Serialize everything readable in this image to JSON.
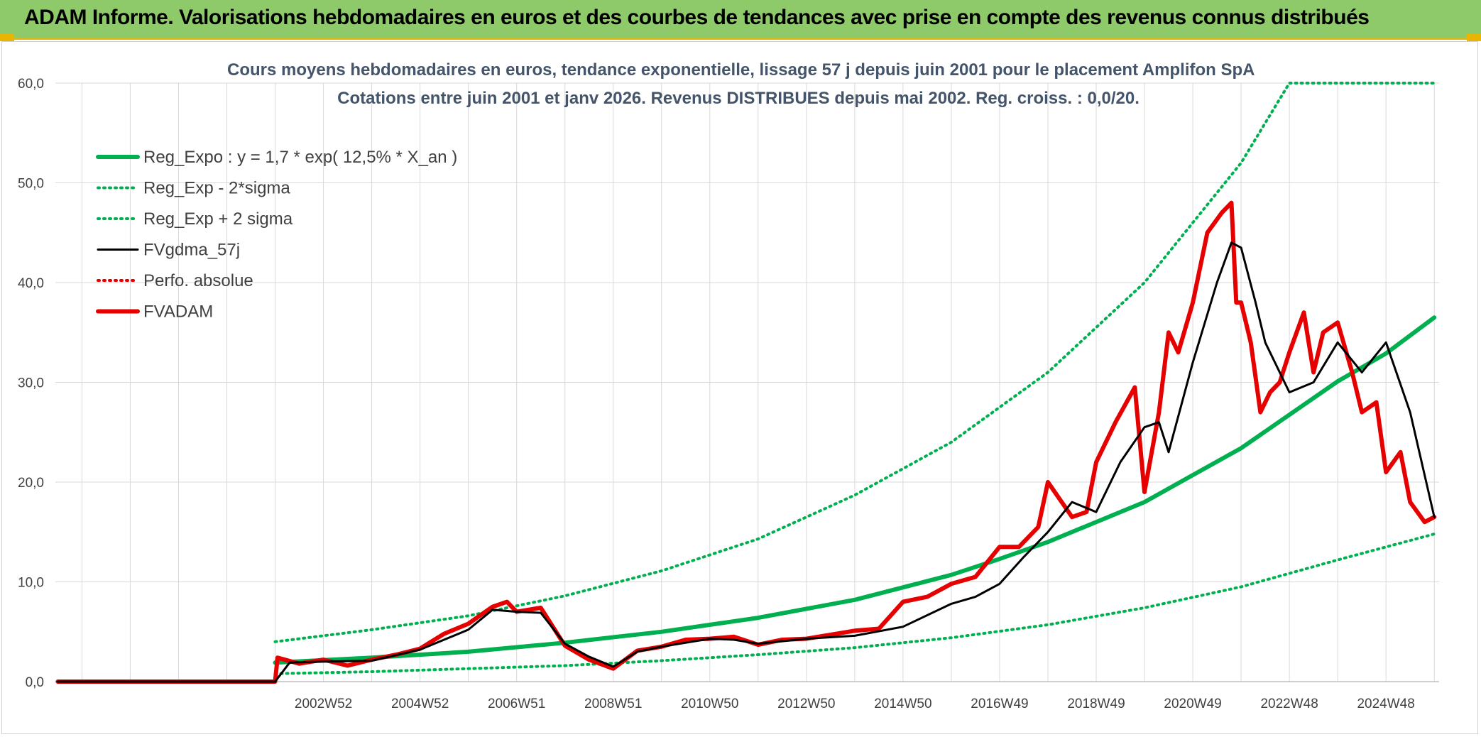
{
  "banner": {
    "title": "ADAM Informe. Valorisations hebdomadaires en euros et des courbes de tendances avec prise en compte des revenus connus distribués"
  },
  "colors": {
    "banner_bg": "#8fca6a",
    "banner_border": "#e9b500",
    "green": "#00b050",
    "red": "#e60000",
    "black": "#000000",
    "grid": "#d9d9d9",
    "title_text": "#44546a"
  },
  "chart_data": {
    "type": "line",
    "title": "Cours moyens hebdomadaires en euros, tendance exponentielle, lissage 57 j depuis juin 2001 pour le placement Amplifon SpA",
    "subtitle": "Cotations entre juin 2001 et janv 2026. Revenus DISTRIBUES depuis mai 2002. Reg. croiss. : 0,0/20.",
    "xlabel": "",
    "ylabel": "",
    "x_range": [
      1997.45,
      2026.1
    ],
    "ylim": [
      0,
      60
    ],
    "y_ticks": [
      "0,0",
      "10,0",
      "20,0",
      "30,0",
      "40,0",
      "50,0",
      "60,0"
    ],
    "x_ticks": [
      {
        "label": "2002W52",
        "x": 2003.0
      },
      {
        "label": "2004W52",
        "x": 2005.0
      },
      {
        "label": "2006W51",
        "x": 2007.0
      },
      {
        "label": "2008W51",
        "x": 2009.0
      },
      {
        "label": "2010W50",
        "x": 2011.0
      },
      {
        "label": "2012W50",
        "x": 2013.0
      },
      {
        "label": "2014W50",
        "x": 2015.0
      },
      {
        "label": "2016W49",
        "x": 2017.0
      },
      {
        "label": "2018W49",
        "x": 2019.0
      },
      {
        "label": "2020W49",
        "x": 2021.0
      },
      {
        "label": "2022W48",
        "x": 2023.0
      },
      {
        "label": "2024W48",
        "x": 2025.0
      }
    ],
    "grid": true,
    "legend_position": "top-left",
    "series": [
      {
        "name": "Reg_Expo : y = 1,7 * exp( 12,5% *  X_an )",
        "style": "solid-thick",
        "color": "#00b050",
        "x": [
          2002.0,
          2004.0,
          2006.0,
          2008.0,
          2010.0,
          2012.0,
          2014.0,
          2016.0,
          2017.0,
          2018.0,
          2020.0,
          2022.0,
          2024.0,
          2025.0,
          2026.0
        ],
        "y": [
          1.9,
          2.4,
          3.0,
          3.9,
          5.0,
          6.4,
          8.2,
          10.7,
          12.3,
          14.0,
          18.0,
          23.4,
          30.1,
          32.9,
          36.5
        ]
      },
      {
        "name": "Reg_Exp - 2*sigma",
        "style": "dotted",
        "color": "#00b050",
        "x": [
          2002.0,
          2004.0,
          2006.0,
          2008.0,
          2010.0,
          2012.0,
          2014.0,
          2016.0,
          2018.0,
          2020.0,
          2022.0,
          2024.0,
          2026.0
        ],
        "y": [
          0.8,
          1.0,
          1.3,
          1.6,
          2.1,
          2.7,
          3.4,
          4.4,
          5.7,
          7.4,
          9.5,
          12.2,
          14.8
        ]
      },
      {
        "name": "Reg_Exp + 2 sigma",
        "style": "dotted",
        "color": "#00b050",
        "x": [
          2002.0,
          2004.0,
          2006.0,
          2008.0,
          2010.0,
          2012.0,
          2014.0,
          2016.0,
          2018.0,
          2020.0,
          2022.0,
          2023.0,
          2024.0,
          2026.0
        ],
        "y": [
          4.0,
          5.2,
          6.6,
          8.6,
          11.1,
          14.3,
          18.7,
          24.0,
          31.0,
          40.0,
          52.0,
          60.0,
          60.0,
          60.0
        ]
      },
      {
        "name": "FVgdma_57j",
        "style": "solid",
        "color": "#000000",
        "x": [
          1997.5,
          2002.0,
          2002.3,
          2003.0,
          2004.0,
          2005.0,
          2006.0,
          2006.5,
          2007.0,
          2007.5,
          2008.0,
          2008.5,
          2009.0,
          2009.5,
          2010.0,
          2011.0,
          2011.5,
          2012.0,
          2013.0,
          2014.0,
          2015.0,
          2016.0,
          2016.5,
          2017.0,
          2017.5,
          2018.0,
          2018.5,
          2019.0,
          2019.5,
          2020.0,
          2020.3,
          2020.5,
          2021.0,
          2021.5,
          2021.8,
          2022.0,
          2022.3,
          2022.5,
          2023.0,
          2023.5,
          2024.0,
          2024.5,
          2025.0,
          2025.5,
          2026.0
        ],
        "y": [
          0.0,
          0.0,
          1.9,
          2.0,
          2.1,
          3.2,
          5.2,
          7.2,
          7.0,
          6.9,
          3.8,
          2.5,
          1.5,
          3.0,
          3.5,
          4.3,
          4.2,
          3.8,
          4.3,
          4.6,
          5.5,
          7.8,
          8.5,
          9.8,
          12.5,
          15.0,
          18.0,
          17.0,
          22.0,
          25.5,
          26.0,
          23.0,
          32.0,
          40.0,
          44.0,
          43.5,
          38.0,
          34.0,
          29.0,
          30.0,
          34.0,
          31.0,
          34.0,
          27.0,
          16.5
        ]
      },
      {
        "name": "Perfo. absolue",
        "style": "dotted",
        "color": "#e60000",
        "x": [],
        "y": []
      },
      {
        "name": "FVADAM",
        "style": "solid-thick",
        "color": "#e60000",
        "x": [
          1997.5,
          2002.0,
          2002.05,
          2002.5,
          2003.0,
          2003.5,
          2004.0,
          2004.5,
          2005.0,
          2005.5,
          2006.0,
          2006.5,
          2006.8,
          2007.0,
          2007.5,
          2008.0,
          2008.5,
          2009.0,
          2009.5,
          2010.0,
          2010.5,
          2011.0,
          2011.5,
          2012.0,
          2012.5,
          2013.0,
          2013.5,
          2014.0,
          2014.5,
          2015.0,
          2015.5,
          2016.0,
          2016.5,
          2017.0,
          2017.4,
          2017.8,
          2018.0,
          2018.5,
          2018.8,
          2019.0,
          2019.4,
          2019.8,
          2020.0,
          2020.3,
          2020.5,
          2020.7,
          2021.0,
          2021.3,
          2021.6,
          2021.8,
          2021.9,
          2022.0,
          2022.2,
          2022.4,
          2022.6,
          2022.8,
          2023.0,
          2023.3,
          2023.5,
          2023.7,
          2024.0,
          2024.3,
          2024.5,
          2024.8,
          2025.0,
          2025.3,
          2025.5,
          2025.8,
          2026.0
        ],
        "y": [
          0.0,
          0.0,
          2.4,
          1.8,
          2.2,
          1.6,
          2.2,
          2.7,
          3.3,
          4.8,
          5.8,
          7.5,
          8.0,
          7.0,
          7.4,
          3.6,
          2.2,
          1.3,
          3.1,
          3.5,
          4.2,
          4.3,
          4.5,
          3.7,
          4.2,
          4.3,
          4.7,
          5.1,
          5.3,
          8.0,
          8.5,
          9.8,
          10.5,
          13.5,
          13.5,
          15.5,
          20.0,
          16.5,
          17.0,
          22.0,
          26.0,
          29.5,
          19.0,
          27.0,
          35.0,
          33.0,
          38.0,
          45.0,
          47.0,
          48.0,
          38.0,
          38.0,
          34.0,
          27.0,
          29.0,
          30.0,
          33.0,
          37.0,
          31.0,
          35.0,
          36.0,
          31.0,
          27.0,
          28.0,
          21.0,
          23.0,
          18.0,
          16.0,
          16.5
        ]
      }
    ]
  }
}
